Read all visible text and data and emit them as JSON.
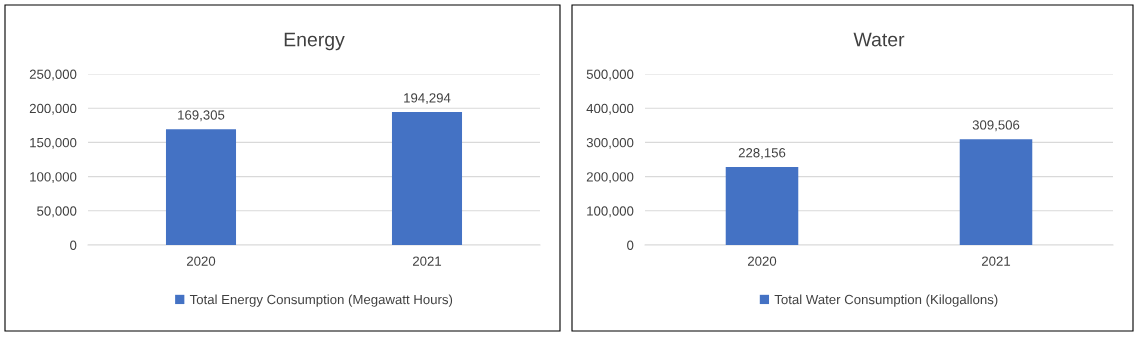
{
  "chart_data": [
    {
      "type": "bar",
      "title": "Energy",
      "categories": [
        "2020",
        "2021"
      ],
      "series": [
        {
          "name": "Total Energy Consumption (Megawatt Hours)",
          "color": "#4472c4",
          "values": [
            169305,
            194294
          ],
          "value_labels": [
            "169,305",
            "194,294"
          ]
        }
      ],
      "ylim": [
        0,
        250000
      ],
      "yticks": [
        {
          "value": 0,
          "label": "0"
        },
        {
          "value": 50000,
          "label": "50,000"
        },
        {
          "value": 100000,
          "label": "100,000"
        },
        {
          "value": 150000,
          "label": "150,000"
        },
        {
          "value": 200000,
          "label": "200,000"
        },
        {
          "value": 250000,
          "label": "250,000"
        }
      ],
      "grid": "y",
      "legend": "bottom"
    },
    {
      "type": "bar",
      "title": "Water",
      "categories": [
        "2020",
        "2021"
      ],
      "series": [
        {
          "name": "Total Water Consumption (Kilogallons)",
          "color": "#4472c4",
          "values": [
            228156,
            309506
          ],
          "value_labels": [
            "228,156",
            "309,506"
          ]
        }
      ],
      "ylim": [
        0,
        500000
      ],
      "yticks": [
        {
          "value": 0,
          "label": "0"
        },
        {
          "value": 100000,
          "label": "100,000"
        },
        {
          "value": 200000,
          "label": "200,000"
        },
        {
          "value": 300000,
          "label": "300,000"
        },
        {
          "value": 400000,
          "label": "400,000"
        },
        {
          "value": 500000,
          "label": "500,000"
        }
      ],
      "grid": "y",
      "legend": "bottom"
    }
  ]
}
